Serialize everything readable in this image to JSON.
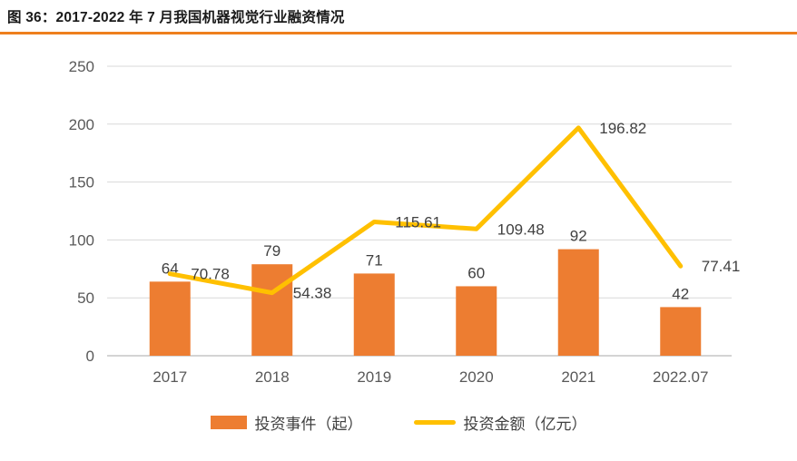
{
  "title": "图 36：2017-2022 年 7 月我国机器视觉行业融资情况",
  "colors": {
    "bar": "#ED7D31",
    "line": "#FFC000",
    "grid": "#D9D9D9",
    "axis_line": "#C6C6C6",
    "axis_text": "#595959",
    "label_text": "#404040",
    "title_underline": "#EE7F1D",
    "title_text": "#1A1A1A"
  },
  "chart_data": {
    "type": "bar",
    "subtype": "bar+line combo",
    "title": "图 36：2017-2022 年 7 月我国机器视觉行业融资情况",
    "categories": [
      "2017",
      "2018",
      "2019",
      "2020",
      "2021",
      "2022.07"
    ],
    "series": [
      {
        "name": "投资事件（起）",
        "type": "bar",
        "color": "#ED7D31",
        "values": [
          64,
          79,
          71,
          60,
          92,
          42
        ]
      },
      {
        "name": "投资金额（亿元）",
        "type": "line",
        "color": "#FFC000",
        "values": [
          70.78,
          54.38,
          115.61,
          109.48,
          196.82,
          77.41
        ]
      }
    ],
    "xlabel": "",
    "ylabel": "",
    "y_ticks": [
      0,
      50,
      100,
      150,
      200,
      250
    ],
    "ylim": [
      0,
      250
    ],
    "grid": true,
    "legend_position": "bottom"
  }
}
